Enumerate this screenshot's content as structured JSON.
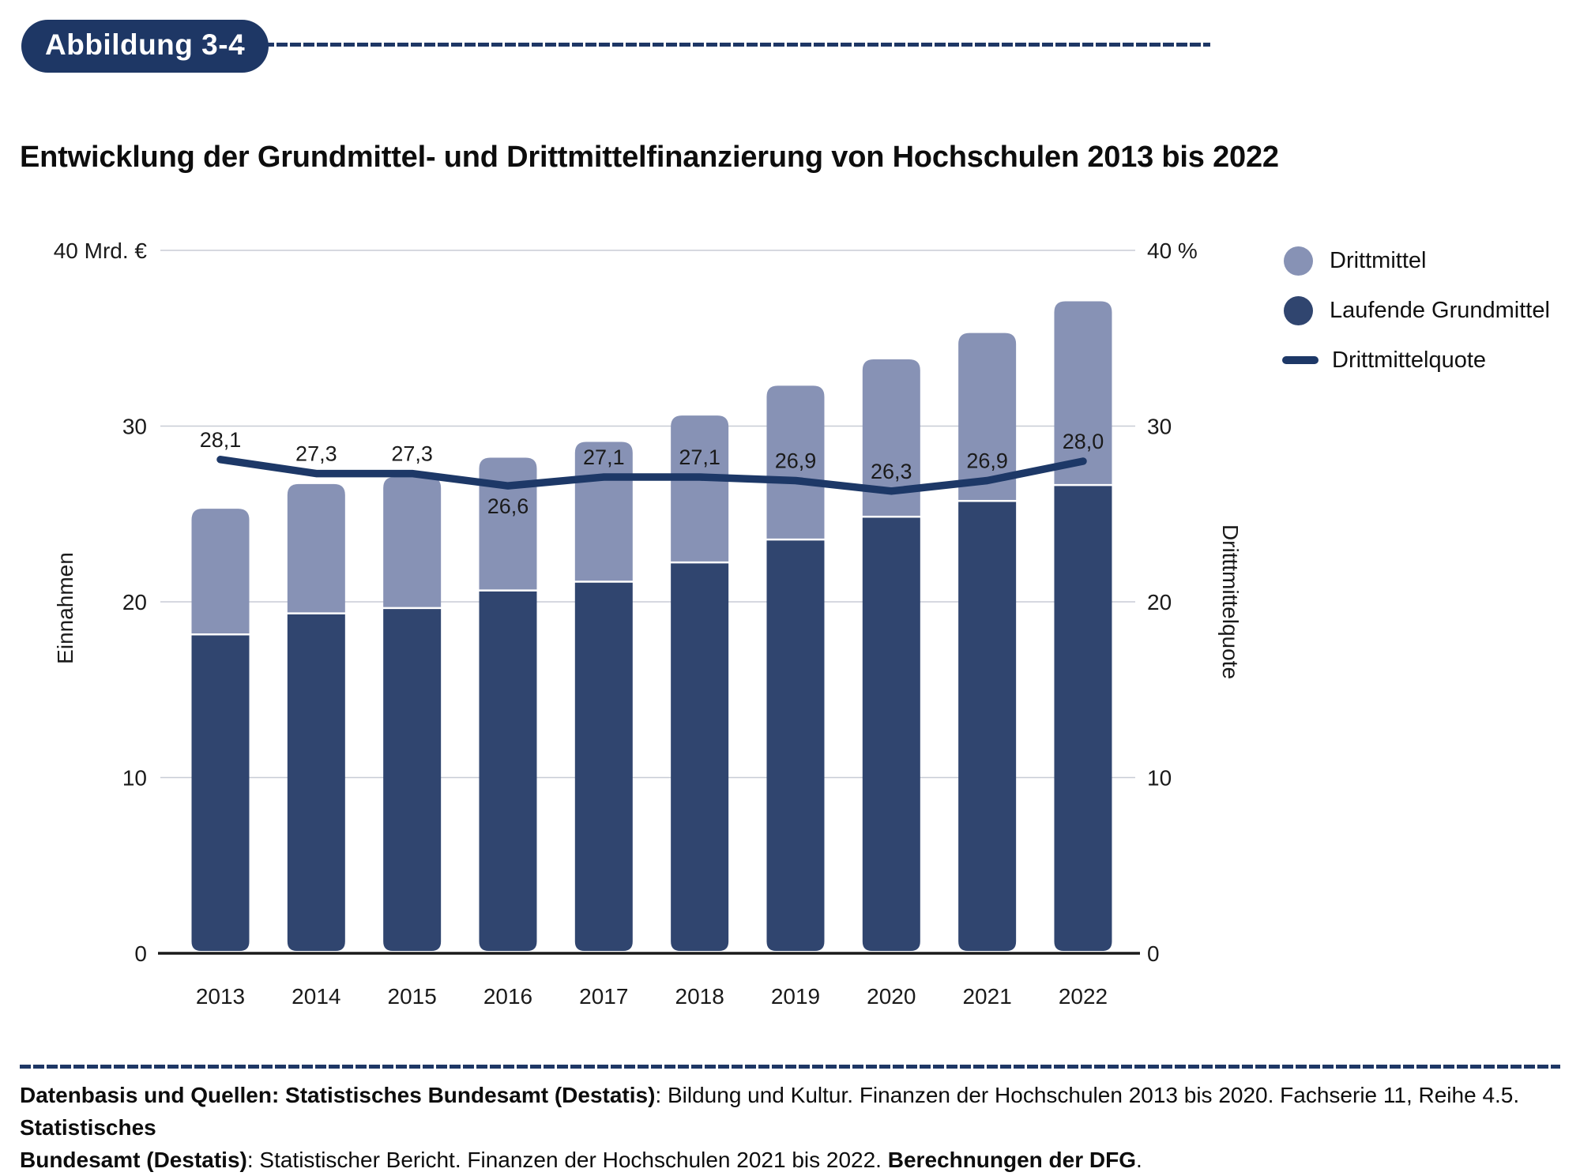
{
  "figure_label": "Abbildung 3-4",
  "title": "Entwicklung der Grundmittel- und Drittmittelfinanzierung von Hochschulen 2013 bis 2022",
  "colors": {
    "navy_accent": "#1e3765",
    "bar_dark": "#30456f",
    "bar_light": "#8792b5",
    "quote_line": "#1d3867",
    "gridline": "#c8ccd5",
    "axis_line": "#1a1a1a",
    "label_on_bar": "#ffffff",
    "text": "#1a1a1a"
  },
  "chart_data": {
    "type": "bar",
    "subtype": "stacked-bars-with-line",
    "categories": [
      "2013",
      "2014",
      "2015",
      "2016",
      "2017",
      "2018",
      "2019",
      "2020",
      "2021",
      "2022"
    ],
    "series": [
      {
        "name": "Laufende Grundmittel",
        "unit": "Mrd. €",
        "values": [
          18.2,
          19.4,
          19.7,
          20.7,
          21.2,
          22.3,
          23.6,
          24.9,
          25.8,
          26.7
        ]
      },
      {
        "name": "Drittmittel",
        "unit": "Mrd. €",
        "values": [
          7.1,
          7.3,
          7.4,
          7.5,
          7.9,
          8.3,
          8.7,
          8.9,
          9.5,
          10.4
        ]
      }
    ],
    "line_series": {
      "name": "Drittmittelquote",
      "unit": "%",
      "values": [
        28.1,
        27.3,
        27.3,
        26.6,
        27.1,
        27.1,
        26.9,
        26.3,
        26.9,
        28.0
      ],
      "labels": [
        "28,1",
        "27,3",
        "27,3",
        "26,6",
        "27,1",
        "27,1",
        "26,9",
        "26,3",
        "26,9",
        "28,0"
      ],
      "label_position": [
        "above",
        "above",
        "above",
        "below",
        "above",
        "above",
        "above",
        "above",
        "above",
        "above"
      ],
      "label_color": [
        "dark",
        "dark",
        "dark",
        "light",
        "light",
        "light",
        "light",
        "light",
        "light",
        "light"
      ]
    },
    "left_axis": {
      "title": "Einnahmen",
      "top_label": "40 Mrd. €",
      "ticks": [
        0,
        10,
        20,
        30
      ],
      "range": [
        0,
        40
      ]
    },
    "right_axis": {
      "title": "Dritttmittelquote",
      "top_label": "40 %",
      "ticks": [
        0,
        10,
        20,
        30
      ],
      "range": [
        0,
        40
      ]
    },
    "grid": true,
    "legend_position": "right"
  },
  "legend": {
    "items": [
      {
        "label": "Drittmittel",
        "swatch": "circle-light"
      },
      {
        "label": "Laufende Grundmittel",
        "swatch": "circle-dark"
      },
      {
        "label": "Drittmittelquote",
        "swatch": "line"
      }
    ]
  },
  "footer": {
    "lines": [
      {
        "segments": [
          {
            "text": "Datenbasis und Quellen: Statistisches Bundesamt (Destatis)",
            "bold": true
          },
          {
            "text": ": Bildung und Kultur. Finanzen der Hochschulen 2013 bis 2020. Fachserie 11, Reihe 4.5. ",
            "bold": false
          },
          {
            "text": "Statistisches",
            "bold": true
          }
        ]
      },
      {
        "segments": [
          {
            "text": "Bundesamt (Destatis)",
            "bold": true
          },
          {
            "text": ": Statistischer Bericht. Finanzen der Hochschulen 2021 bis 2022. ",
            "bold": false
          },
          {
            "text": "Berechnungen der DFG",
            "bold": true
          },
          {
            "text": ".",
            "bold": false
          }
        ]
      }
    ]
  }
}
